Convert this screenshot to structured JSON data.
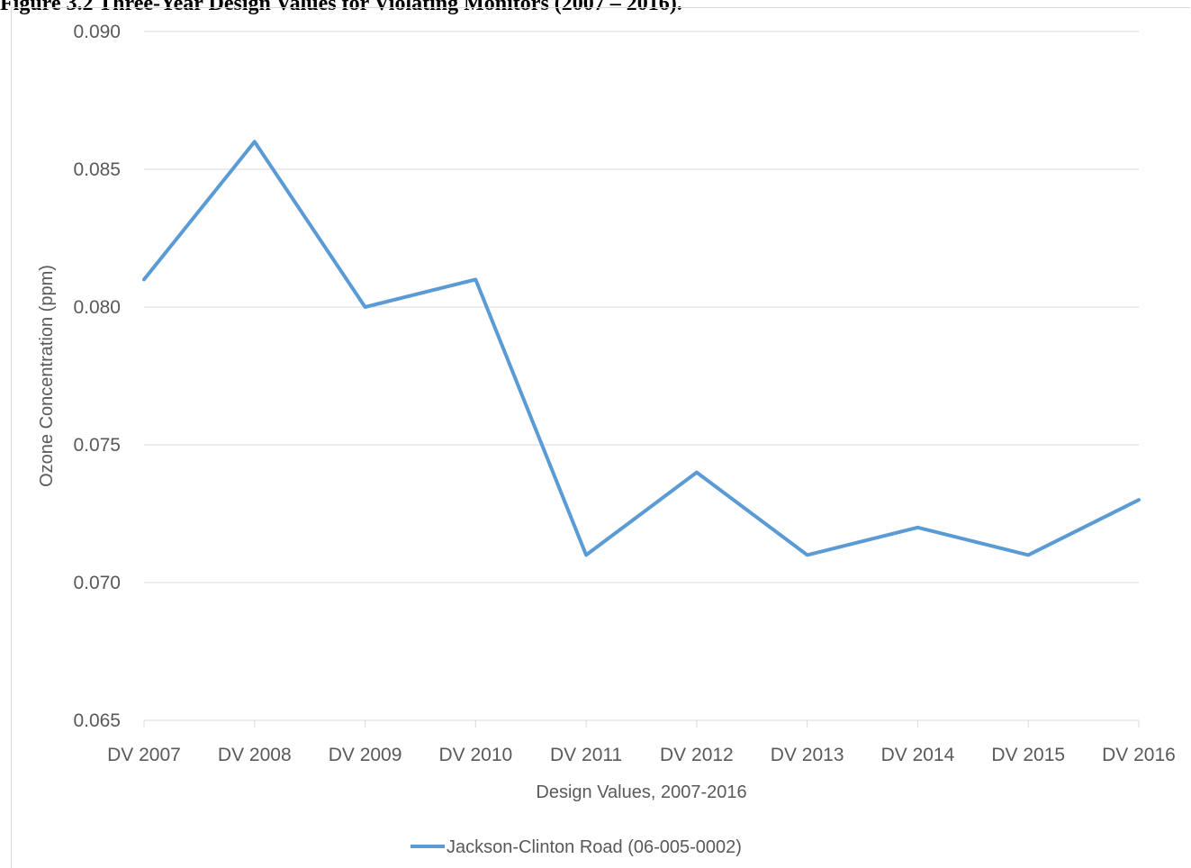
{
  "figure": {
    "caption": "Figure 3.2 Three-Year Design Values for Violating Monitors (2007 – 2016)."
  },
  "chart_data": {
    "type": "line",
    "title": "",
    "xlabel": "Design Values, 2007-2016",
    "ylabel": "Ozone Concentration (ppm)",
    "categories": [
      "DV 2007",
      "DV 2008",
      "DV 2009",
      "DV 2010",
      "DV 2011",
      "DV 2012",
      "DV 2013",
      "DV 2014",
      "DV 2015",
      "DV 2016"
    ],
    "ylim": [
      0.065,
      0.09
    ],
    "yticks": [
      "0.065",
      "0.070",
      "0.075",
      "0.080",
      "0.085",
      "0.090"
    ],
    "grid": true,
    "legend_position": "bottom",
    "series": [
      {
        "name": "Jackson-Clinton Road (06-005-0002)",
        "color": "#5b9bd5",
        "values": [
          0.081,
          0.086,
          0.08,
          0.081,
          0.071,
          0.074,
          0.071,
          0.072,
          0.071,
          0.073
        ]
      }
    ]
  }
}
